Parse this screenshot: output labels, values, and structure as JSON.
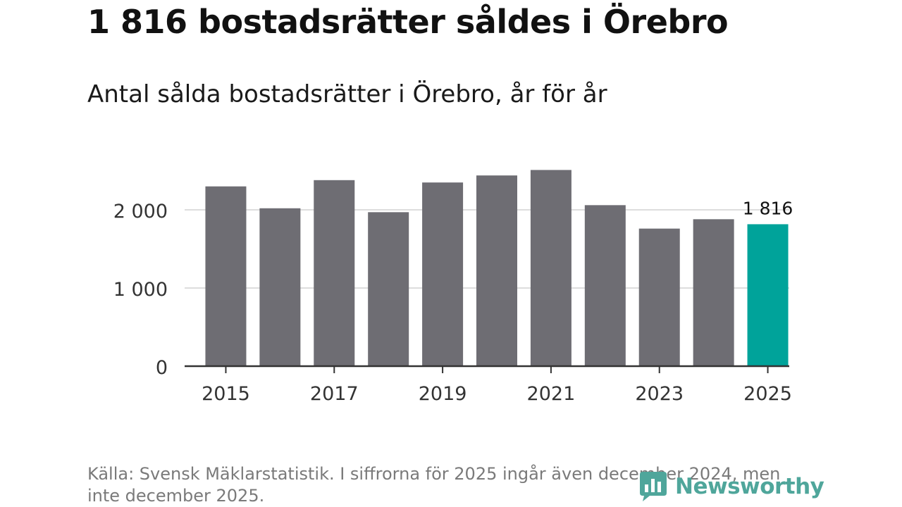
{
  "header": {
    "title": "1 816 bostadsrätter såldes i Örebro",
    "subtitle": "Antal sålda bostadsrätter i Örebro, år för år"
  },
  "chart_data": {
    "type": "bar",
    "title": "1 816 bostadsrätter såldes i Örebro",
    "subtitle": "Antal sålda bostadsrätter i Örebro, år för år",
    "categories": [
      "2015",
      "2016",
      "2017",
      "2018",
      "2019",
      "2020",
      "2021",
      "2022",
      "2023",
      "2024",
      "2025"
    ],
    "values": [
      2300,
      2020,
      2380,
      1970,
      2350,
      2440,
      2510,
      2060,
      1760,
      1880,
      1816
    ],
    "x_tick_labels": [
      "2015",
      "2017",
      "2019",
      "2021",
      "2023",
      "2025"
    ],
    "y_ticks": [
      0,
      1000,
      2000
    ],
    "y_tick_labels": [
      "0",
      "1 000",
      "2 000"
    ],
    "ylim": [
      0,
      2700
    ],
    "grid": true,
    "highlight": {
      "index": 10,
      "label": "1 816"
    },
    "xlabel": "",
    "ylabel": ""
  },
  "colors": {
    "bar": "#6e6d73",
    "highlight": "#00a39a",
    "grid": "#dddddd",
    "axis": "#333333",
    "brand": "#4fa69b"
  },
  "footer": {
    "source": "Källa: Svensk Mäklarstatistik. I siffrorna för 2025 ingår även december 2024, men inte december 2025.",
    "brand": "Newsworthy",
    "brand_icon": "bar-chart-logo-icon"
  }
}
